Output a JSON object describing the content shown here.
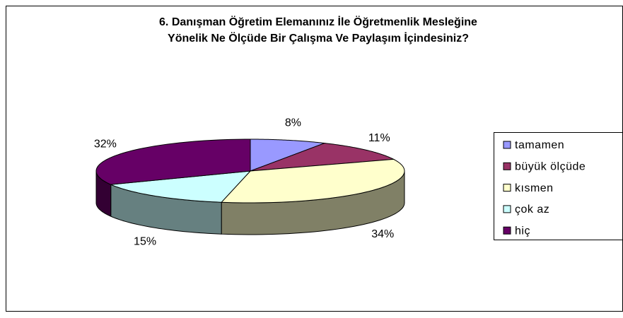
{
  "chart_data": {
    "type": "pie3d",
    "title": [
      "6. Danışman Öğretim Elemanınız İle Öğretmenlik Mesleğine",
      "Yönelik Ne Ölçüde Bir Çalışma Ve Paylaşım İçindesiniz?"
    ],
    "categories": [
      "tamamen",
      "büyük ölçüde",
      "kısmen",
      "çok az",
      "hiç"
    ],
    "values": [
      8,
      11,
      34,
      15,
      32
    ],
    "value_labels": [
      "8%",
      "11%",
      "34%",
      "15%",
      "32%"
    ],
    "colors": [
      "#9999ff",
      "#993366",
      "#ffffcc",
      "#ccffff",
      "#660066"
    ],
    "legend": "right"
  }
}
